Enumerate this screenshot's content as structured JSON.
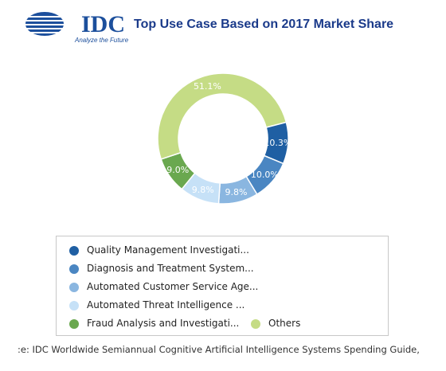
{
  "logo": {
    "name": "IDC",
    "tagline": "Analyze the Future"
  },
  "title": "Top Use Case Based on 2017 Market Share",
  "chart_data": {
    "type": "pie",
    "title": "Top Use Case Based on 2017 Market Share",
    "categories": [
      "Quality Management Investigati...",
      "Diagnosis and Treatment System...",
      "Automated Customer Service Age...",
      "Automated Threat Intelligence ...",
      "Fraud Analysis and Investigati...",
      "Others"
    ],
    "values": [
      10.3,
      10.0,
      9.8,
      9.8,
      9.0,
      51.1
    ],
    "labels": [
      "10.3%",
      "10.0%",
      "9.8%",
      "9.8%",
      "9.0%",
      "51.1%"
    ],
    "colors": [
      "#1f5fa3",
      "#4a86c2",
      "#8ab6e0",
      "#c6e1f7",
      "#6aa84f",
      "#c5dc85"
    ],
    "donut": true,
    "legend_position": "bottom"
  },
  "source": ":e: IDC Worldwide Semiannual Cognitive Artificial Intelligence Systems Spending Guide,"
}
